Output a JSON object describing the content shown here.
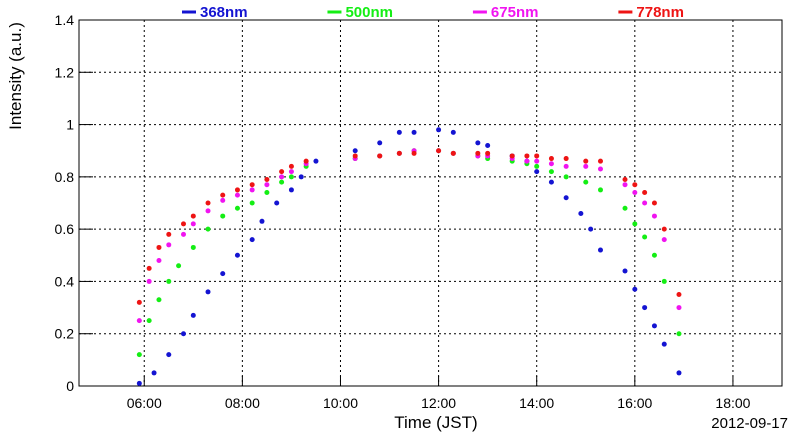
{
  "chart_data": {
    "type": "scatter",
    "title": "",
    "xlabel": "Time (JST)",
    "ylabel": "Intensity (a.u.)",
    "date_label": "2012-09-17",
    "x_unit": "hours",
    "xlim": [
      4.67,
      19.0
    ],
    "ylim": [
      0,
      1.4
    ],
    "x_ticks": [
      6,
      8,
      10,
      12,
      14,
      16,
      18
    ],
    "x_tick_labels": [
      "06:00",
      "08:00",
      "10:00",
      "12:00",
      "14:00",
      "16:00",
      "18:00"
    ],
    "y_ticks": [
      0,
      0.2,
      0.4,
      0.6,
      0.8,
      1.0,
      1.2,
      1.4
    ],
    "y_tick_labels": [
      "0",
      "0.2",
      "0.4",
      "0.6",
      "0.8",
      "1",
      "1.2",
      "1.4"
    ],
    "grid": true,
    "legend_position": "top",
    "series": [
      {
        "name": "368nm",
        "color": "#1414d2",
        "x": [
          5.9,
          6.2,
          6.5,
          6.8,
          7.0,
          7.3,
          7.6,
          7.9,
          8.2,
          8.4,
          8.7,
          9.0,
          9.2,
          9.5,
          10.3,
          10.8,
          11.2,
          11.5,
          12.0,
          12.3,
          12.8,
          13.0,
          13.5,
          13.8,
          14.0,
          14.3,
          14.6,
          14.9,
          15.1,
          15.3,
          15.8,
          16.0,
          16.2,
          16.4,
          16.6,
          16.9
        ],
        "y": [
          0.01,
          0.05,
          0.12,
          0.2,
          0.27,
          0.36,
          0.43,
          0.5,
          0.56,
          0.63,
          0.7,
          0.75,
          0.8,
          0.86,
          0.9,
          0.93,
          0.97,
          0.97,
          0.98,
          0.97,
          0.93,
          0.92,
          0.88,
          0.86,
          0.82,
          0.78,
          0.72,
          0.66,
          0.6,
          0.52,
          0.44,
          0.37,
          0.3,
          0.23,
          0.16,
          0.05
        ]
      },
      {
        "name": "500nm",
        "color": "#14ee14",
        "x": [
          5.9,
          6.1,
          6.3,
          6.5,
          6.7,
          7.0,
          7.3,
          7.6,
          7.9,
          8.2,
          8.5,
          8.8,
          9.0,
          9.3,
          10.3,
          10.8,
          11.2,
          11.5,
          12.0,
          12.3,
          12.8,
          13.0,
          13.5,
          13.8,
          14.0,
          14.3,
          14.6,
          15.0,
          15.3,
          15.8,
          16.0,
          16.2,
          16.4,
          16.6,
          16.9
        ],
        "y": [
          0.12,
          0.25,
          0.33,
          0.4,
          0.46,
          0.53,
          0.6,
          0.65,
          0.68,
          0.7,
          0.74,
          0.78,
          0.8,
          0.84,
          0.87,
          0.88,
          0.89,
          0.9,
          0.9,
          0.89,
          0.88,
          0.87,
          0.86,
          0.85,
          0.84,
          0.82,
          0.8,
          0.78,
          0.75,
          0.68,
          0.62,
          0.57,
          0.5,
          0.4,
          0.2
        ]
      },
      {
        "name": "675nm",
        "color": "#f014f0",
        "x": [
          5.9,
          6.1,
          6.3,
          6.5,
          6.8,
          7.0,
          7.3,
          7.6,
          7.9,
          8.2,
          8.5,
          8.8,
          9.0,
          9.3,
          10.3,
          10.8,
          11.2,
          11.5,
          12.0,
          12.3,
          12.8,
          13.0,
          13.5,
          13.8,
          14.0,
          14.3,
          14.6,
          15.0,
          15.3,
          15.8,
          16.0,
          16.2,
          16.4,
          16.6,
          16.9
        ],
        "y": [
          0.25,
          0.4,
          0.48,
          0.54,
          0.58,
          0.62,
          0.67,
          0.71,
          0.73,
          0.75,
          0.77,
          0.8,
          0.82,
          0.85,
          0.87,
          0.88,
          0.89,
          0.9,
          0.9,
          0.89,
          0.88,
          0.88,
          0.87,
          0.86,
          0.86,
          0.85,
          0.84,
          0.84,
          0.83,
          0.77,
          0.74,
          0.7,
          0.65,
          0.56,
          0.3
        ]
      },
      {
        "name": "778nm",
        "color": "#ee1414",
        "x": [
          5.9,
          6.1,
          6.3,
          6.5,
          6.8,
          7.0,
          7.3,
          7.6,
          7.9,
          8.2,
          8.5,
          8.8,
          9.0,
          9.3,
          10.3,
          10.8,
          11.2,
          11.5,
          12.0,
          12.3,
          12.8,
          13.0,
          13.5,
          13.8,
          14.0,
          14.3,
          14.6,
          15.0,
          15.3,
          15.8,
          16.0,
          16.2,
          16.4,
          16.6,
          16.9
        ],
        "y": [
          0.32,
          0.45,
          0.53,
          0.58,
          0.62,
          0.65,
          0.7,
          0.73,
          0.75,
          0.77,
          0.79,
          0.82,
          0.84,
          0.86,
          0.88,
          0.88,
          0.89,
          0.89,
          0.9,
          0.89,
          0.89,
          0.89,
          0.88,
          0.88,
          0.88,
          0.87,
          0.87,
          0.86,
          0.86,
          0.79,
          0.77,
          0.74,
          0.7,
          0.6,
          0.35
        ]
      }
    ]
  }
}
